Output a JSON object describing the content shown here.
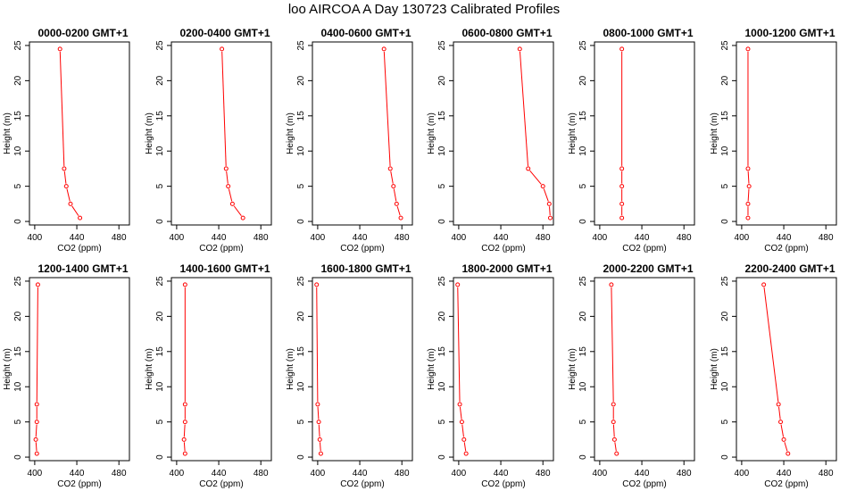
{
  "title": "loo AIRCOA A  Day 130723  Calibrated Profiles",
  "colors": {
    "profile": "#ff0000",
    "axis": "#000000"
  },
  "chart_data": [
    {
      "type": "line",
      "title": "0000-0200 GMT+1",
      "xlabel": "CO2 (ppm)",
      "ylabel": "Height (m)",
      "xlim": [
        395,
        490
      ],
      "ylim": [
        -0.5,
        25.5
      ],
      "xticks": [
        400,
        440,
        480
      ],
      "yticks": [
        0,
        5,
        10,
        15,
        20,
        25
      ],
      "grid": false,
      "points": {
        "x": [
          424,
          428,
          430,
          434,
          443
        ],
        "y": [
          24.5,
          7.5,
          5,
          2.5,
          0.5
        ]
      }
    },
    {
      "type": "line",
      "title": "0200-0400 GMT+1",
      "xlabel": "CO2 (ppm)",
      "ylabel": "Height (m)",
      "xlim": [
        395,
        490
      ],
      "ylim": [
        -0.5,
        25.5
      ],
      "xticks": [
        400,
        440,
        480
      ],
      "yticks": [
        0,
        5,
        10,
        15,
        20,
        25
      ],
      "grid": false,
      "points": {
        "x": [
          443,
          447,
          449,
          453,
          463
        ],
        "y": [
          24.5,
          7.5,
          5,
          2.5,
          0.5
        ]
      }
    },
    {
      "type": "line",
      "title": "0400-0600 GMT+1",
      "xlabel": "CO2 (ppm)",
      "ylabel": "Height (m)",
      "xlim": [
        395,
        490
      ],
      "ylim": [
        -0.5,
        25.5
      ],
      "xticks": [
        400,
        440,
        480
      ],
      "yticks": [
        0,
        5,
        10,
        15,
        20,
        25
      ],
      "grid": false,
      "points": {
        "x": [
          463,
          469,
          472,
          475,
          479
        ],
        "y": [
          24.5,
          7.5,
          5,
          2.5,
          0.5
        ]
      }
    },
    {
      "type": "line",
      "title": "0600-0800 GMT+1",
      "xlabel": "CO2 (ppm)",
      "ylabel": "Height (m)",
      "xlim": [
        395,
        490
      ],
      "ylim": [
        -0.5,
        25.5
      ],
      "xticks": [
        400,
        440,
        480
      ],
      "yticks": [
        0,
        5,
        10,
        15,
        20,
        25
      ],
      "grid": false,
      "points": {
        "x": [
          458,
          466,
          480,
          486,
          487
        ],
        "y": [
          24.5,
          7.5,
          5,
          2.5,
          0.5
        ]
      }
    },
    {
      "type": "line",
      "title": "0800-1000 GMT+1",
      "xlabel": "CO2 (ppm)",
      "ylabel": "Height (m)",
      "xlim": [
        395,
        490
      ],
      "ylim": [
        -0.5,
        25.5
      ],
      "xticks": [
        400,
        440,
        480
      ],
      "yticks": [
        0,
        5,
        10,
        15,
        20,
        25
      ],
      "grid": false,
      "points": {
        "x": [
          421,
          421,
          421,
          421,
          421
        ],
        "y": [
          24.5,
          7.5,
          5,
          2.5,
          0.5
        ]
      }
    },
    {
      "type": "line",
      "title": "1000-1200 GMT+1",
      "xlabel": "CO2 (ppm)",
      "ylabel": "Height (m)",
      "xlim": [
        395,
        490
      ],
      "ylim": [
        -0.5,
        25.5
      ],
      "xticks": [
        400,
        440,
        480
      ],
      "yticks": [
        0,
        5,
        10,
        15,
        20,
        25
      ],
      "grid": false,
      "points": {
        "x": [
          406,
          406,
          407,
          406,
          406
        ],
        "y": [
          24.5,
          7.5,
          5,
          2.5,
          0.5
        ]
      }
    },
    {
      "type": "line",
      "title": "1200-1400 GMT+1",
      "xlabel": "CO2 (ppm)",
      "ylabel": "Height (m)",
      "xlim": [
        395,
        490
      ],
      "ylim": [
        -0.5,
        25.5
      ],
      "xticks": [
        400,
        440,
        480
      ],
      "yticks": [
        0,
        5,
        10,
        15,
        20,
        25
      ],
      "grid": false,
      "points": {
        "x": [
          403,
          402,
          402,
          401,
          402
        ],
        "y": [
          24.5,
          7.5,
          5,
          2.5,
          0.5
        ]
      }
    },
    {
      "type": "line",
      "title": "1400-1600 GMT+1",
      "xlabel": "CO2 (ppm)",
      "ylabel": "Height (m)",
      "xlim": [
        395,
        490
      ],
      "ylim": [
        -0.5,
        25.5
      ],
      "xticks": [
        400,
        440,
        480
      ],
      "yticks": [
        0,
        5,
        10,
        15,
        20,
        25
      ],
      "grid": false,
      "points": {
        "x": [
          408,
          408,
          408,
          407,
          408
        ],
        "y": [
          24.5,
          7.5,
          5,
          2.5,
          0.5
        ]
      }
    },
    {
      "type": "line",
      "title": "1600-1800 GMT+1",
      "xlabel": "CO2 (ppm)",
      "ylabel": "Height (m)",
      "xlim": [
        395,
        490
      ],
      "ylim": [
        -0.5,
        25.5
      ],
      "xticks": [
        400,
        440,
        480
      ],
      "yticks": [
        0,
        5,
        10,
        15,
        20,
        25
      ],
      "grid": false,
      "points": {
        "x": [
          399,
          400,
          401,
          402,
          403
        ],
        "y": [
          24.5,
          7.5,
          5,
          2.5,
          0.5
        ]
      }
    },
    {
      "type": "line",
      "title": "1800-2000 GMT+1",
      "xlabel": "CO2 (ppm)",
      "ylabel": "Height (m)",
      "xlim": [
        395,
        490
      ],
      "ylim": [
        -0.5,
        25.5
      ],
      "xticks": [
        400,
        440,
        480
      ],
      "yticks": [
        0,
        5,
        10,
        15,
        20,
        25
      ],
      "grid": false,
      "points": {
        "x": [
          399,
          401,
          403,
          405,
          407
        ],
        "y": [
          24.5,
          7.5,
          5,
          2.5,
          0.5
        ]
      }
    },
    {
      "type": "line",
      "title": "2000-2200 GMT+1",
      "xlabel": "CO2 (ppm)",
      "ylabel": "Height (m)",
      "xlim": [
        395,
        490
      ],
      "ylim": [
        -0.5,
        25.5
      ],
      "xticks": [
        400,
        440,
        480
      ],
      "yticks": [
        0,
        5,
        10,
        15,
        20,
        25
      ],
      "grid": false,
      "points": {
        "x": [
          411,
          413,
          413,
          414,
          416
        ],
        "y": [
          24.5,
          7.5,
          5,
          2.5,
          0.5
        ]
      }
    },
    {
      "type": "line",
      "title": "2200-2400 GMT+1",
      "xlabel": "CO2 (ppm)",
      "ylabel": "Height (m)",
      "xlim": [
        395,
        490
      ],
      "ylim": [
        -0.5,
        25.5
      ],
      "xticks": [
        400,
        440,
        480
      ],
      "yticks": [
        0,
        5,
        10,
        15,
        20,
        25
      ],
      "grid": false,
      "points": {
        "x": [
          421,
          435,
          437,
          440,
          444
        ],
        "y": [
          24.5,
          7.5,
          5,
          2.5,
          0.5
        ]
      }
    }
  ]
}
